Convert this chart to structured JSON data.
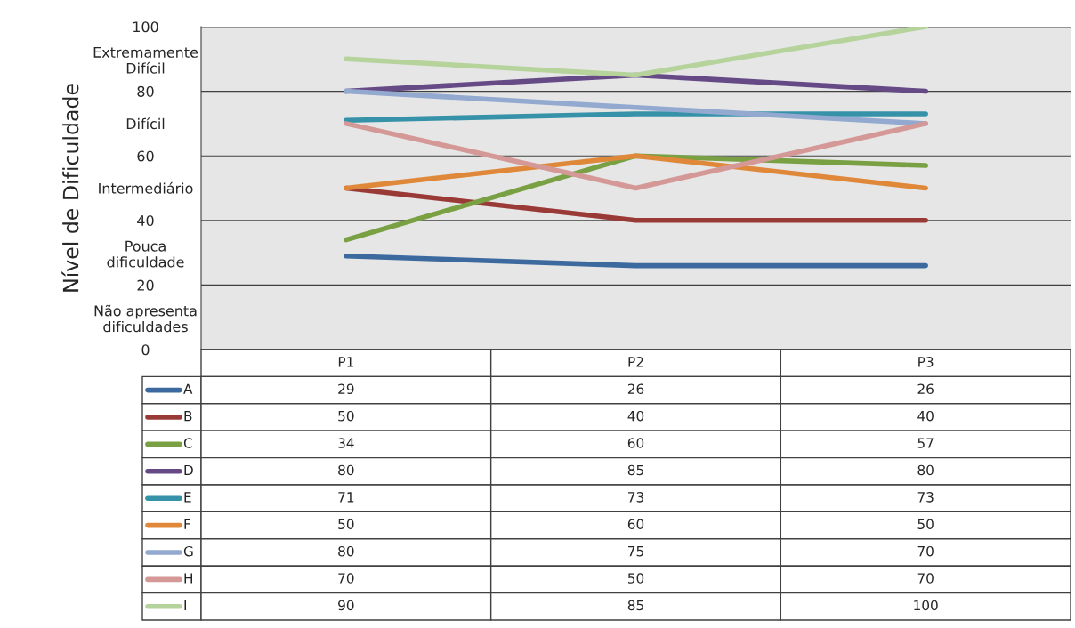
{
  "chart_data": {
    "type": "line",
    "ylabel": "Nível de Dificuldade",
    "categories": [
      "P1",
      "P2",
      "P3"
    ],
    "series": [
      {
        "name": "A",
        "color": "#3d6a9e",
        "values": [
          29,
          26,
          26
        ]
      },
      {
        "name": "B",
        "color": "#9a3a37",
        "values": [
          50,
          40,
          40
        ]
      },
      {
        "name": "C",
        "color": "#79a043",
        "values": [
          34,
          60,
          57
        ]
      },
      {
        "name": "D",
        "color": "#654a86",
        "values": [
          80,
          85,
          80
        ]
      },
      {
        "name": "E",
        "color": "#3592a8",
        "values": [
          71,
          73,
          73
        ]
      },
      {
        "name": "F",
        "color": "#e0883a",
        "values": [
          50,
          60,
          50
        ]
      },
      {
        "name": "G",
        "color": "#93a9d0",
        "values": [
          80,
          75,
          70
        ]
      },
      {
        "name": "H",
        "color": "#d49896",
        "values": [
          70,
          50,
          70
        ]
      },
      {
        "name": "I",
        "color": "#b6d39b",
        "values": [
          90,
          85,
          100
        ]
      }
    ],
    "ylim": [
      0,
      100
    ],
    "yticks": [
      0,
      20,
      40,
      60,
      80,
      100,
      {
        "value": 10,
        "label": "Não apresenta\ndificuldades"
      },
      {
        "value": 30,
        "label": "Pouca\ndificuldade"
      },
      {
        "value": 50,
        "label": "Intermediário"
      },
      {
        "value": 70,
        "label": "Difícil"
      },
      {
        "value": 90,
        "label": "Extremamente\nDifícil"
      }
    ],
    "grid": "y",
    "data_labels": true,
    "legend": "bottom left",
    "marker": "none",
    "line_style": "solid"
  }
}
